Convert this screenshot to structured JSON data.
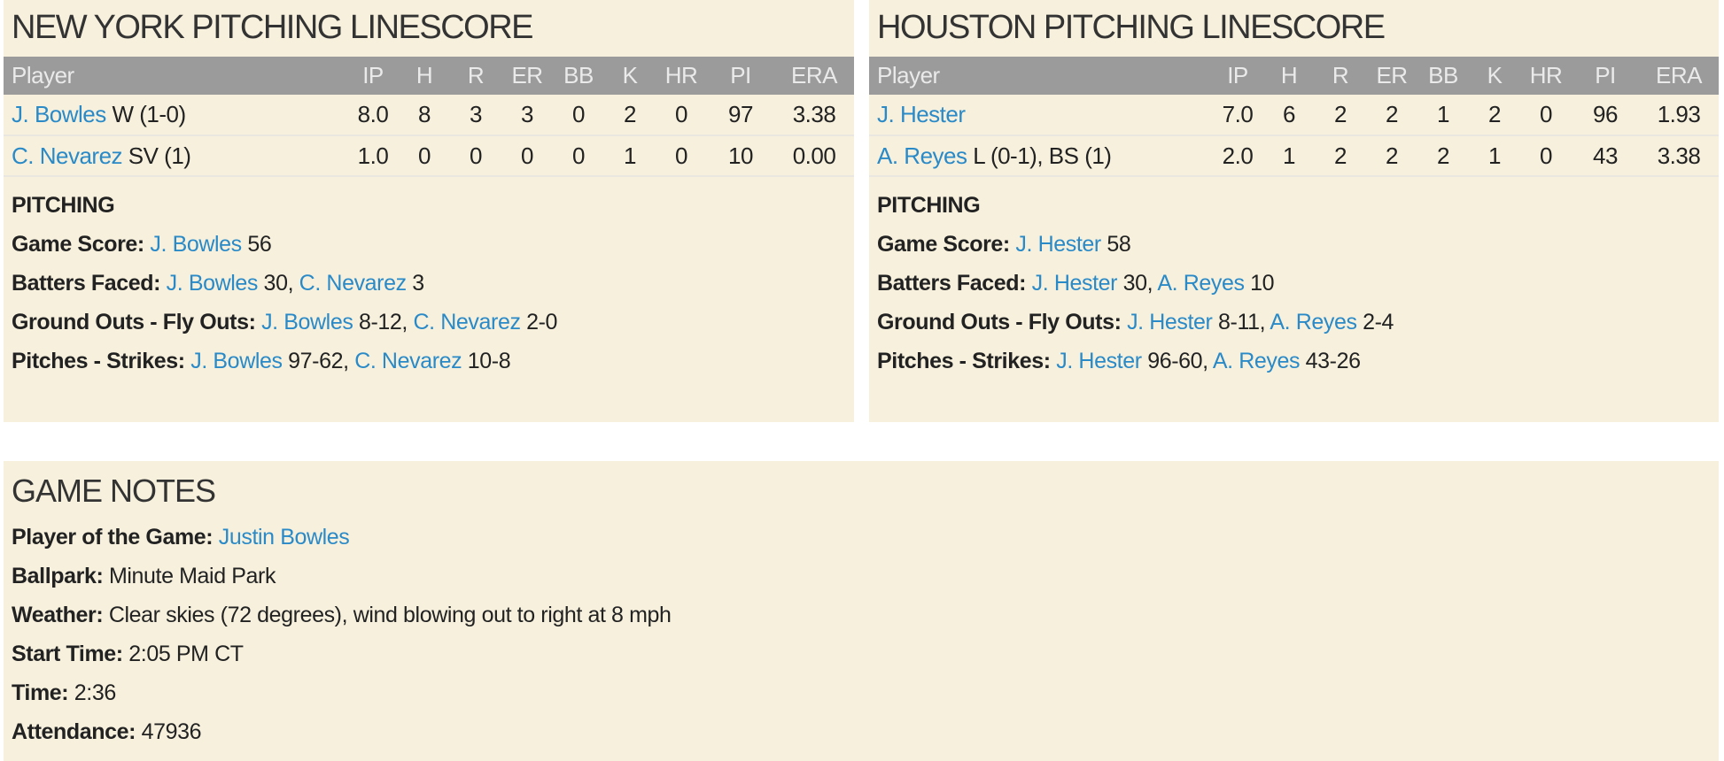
{
  "columns": [
    "Player",
    "IP",
    "H",
    "R",
    "ER",
    "BB",
    "K",
    "HR",
    "PI",
    "ERA"
  ],
  "colors": {
    "background": "#f6f0dd",
    "header": "#9b9b9b",
    "link": "#2a8ac8"
  },
  "ny": {
    "title": "NEW YORK PITCHING LINESCORE",
    "rows": [
      {
        "name": "J. Bowles",
        "note": " W (1-0)",
        "stats": [
          "8.0",
          "8",
          "3",
          "3",
          "0",
          "2",
          "0",
          "97",
          "3.38"
        ]
      },
      {
        "name": "C. Nevarez",
        "note": " SV (1)",
        "stats": [
          "1.0",
          "0",
          "0",
          "0",
          "0",
          "1",
          "0",
          "10",
          "0.00"
        ]
      }
    ],
    "pitching": {
      "heading": "PITCHING",
      "game_score": {
        "label": "Game Score:",
        "p1": "J. Bowles",
        "v1": " 56"
      },
      "batters_faced": {
        "label": "Batters Faced:",
        "p1": "J. Bowles",
        "v1": " 30, ",
        "p2": "C. Nevarez",
        "v2": " 3"
      },
      "go_fo": {
        "label": "Ground Outs - Fly Outs:",
        "p1": "J. Bowles",
        "v1": " 8-12, ",
        "p2": "C. Nevarez",
        "v2": " 2-0"
      },
      "pitches_strikes": {
        "label": "Pitches - Strikes:",
        "p1": "J. Bowles",
        "v1": " 97-62, ",
        "p2": "C. Nevarez",
        "v2": " 10-8"
      }
    }
  },
  "hou": {
    "title": "HOUSTON PITCHING LINESCORE",
    "rows": [
      {
        "name": "J. Hester",
        "note": "",
        "stats": [
          "7.0",
          "6",
          "2",
          "2",
          "1",
          "2",
          "0",
          "96",
          "1.93"
        ]
      },
      {
        "name": "A. Reyes",
        "note": " L (0-1), BS (1)",
        "stats": [
          "2.0",
          "1",
          "2",
          "2",
          "2",
          "1",
          "0",
          "43",
          "3.38"
        ]
      }
    ],
    "pitching": {
      "heading": "PITCHING",
      "game_score": {
        "label": "Game Score:",
        "p1": "J. Hester",
        "v1": " 58"
      },
      "batters_faced": {
        "label": "Batters Faced:",
        "p1": "J. Hester",
        "v1": " 30, ",
        "p2": "A. Reyes",
        "v2": " 10"
      },
      "go_fo": {
        "label": "Ground Outs - Fly Outs:",
        "p1": "J. Hester",
        "v1": " 8-11, ",
        "p2": "A. Reyes",
        "v2": " 2-4"
      },
      "pitches_strikes": {
        "label": "Pitches - Strikes:",
        "p1": "J. Hester",
        "v1": " 96-60, ",
        "p2": "A. Reyes",
        "v2": " 43-26"
      }
    }
  },
  "notes": {
    "title": "GAME NOTES",
    "player_of_game": {
      "label": "Player of the Game:",
      "value": "Justin Bowles"
    },
    "ballpark": {
      "label": "Ballpark:",
      "value": "Minute Maid Park"
    },
    "weather": {
      "label": "Weather:",
      "value": "Clear skies (72 degrees), wind blowing out to right at 8 mph"
    },
    "start_time": {
      "label": "Start Time:",
      "value": "2:05 PM CT"
    },
    "time": {
      "label": "Time:",
      "value": "2:36"
    },
    "attendance": {
      "label": "Attendance:",
      "value": "47936"
    }
  }
}
